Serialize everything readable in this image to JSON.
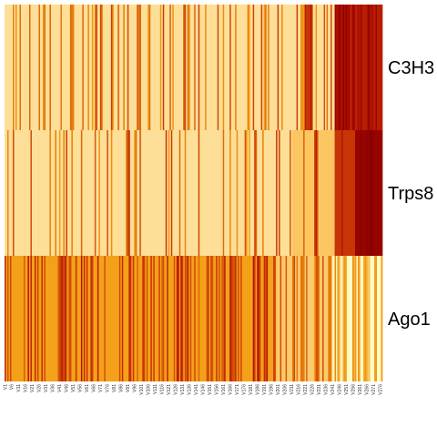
{
  "chart_data": {
    "type": "heatmap",
    "title": "",
    "xlabel": "",
    "ylabel": "",
    "legend": "none",
    "rows": [
      "C3H3",
      "Trps8",
      "Ago1"
    ],
    "columns": {
      "count": 277,
      "prefix": "V",
      "labeled_every": 5,
      "visible_labels": [
        "V1",
        "V6",
        "V11",
        "V16",
        "V21",
        "V26",
        "V31",
        "V36",
        "V41",
        "V46",
        "V51",
        "V56",
        "V61",
        "V66",
        "V71",
        "V76",
        "V81",
        "V86",
        "V91",
        "V96",
        "V101",
        "V106",
        "V111",
        "V116",
        "V121",
        "V126",
        "V131",
        "V136",
        "V141",
        "V146",
        "V151",
        "V156",
        "V161",
        "V166",
        "V171",
        "V176",
        "V181",
        "V186",
        "V191",
        "V196",
        "V201",
        "V206",
        "V211",
        "V216",
        "V221",
        "V226",
        "V231",
        "V236",
        "V241",
        "V246",
        "V251",
        "V256",
        "V261",
        "V266",
        "V271",
        "V276"
      ]
    },
    "value_scale": {
      "range": [
        0,
        1
      ],
      "colors": [
        "#ffffcc",
        "#fde3a0",
        "#fcc25a",
        "#f5a21b",
        "#e8820c",
        "#d45309",
        "#c42a04",
        "#a80a00",
        "#8b0000"
      ]
    },
    "row_profiles": [
      {
        "name": "C3H3",
        "base": 0.14,
        "spike_rate": 0.28,
        "spike_value": 0.4,
        "segments": [
          {
            "from": 221,
            "to": 226,
            "value": 0.72
          },
          {
            "from": 243,
            "to": 252,
            "value": 0.86
          },
          {
            "from": 253,
            "to": 277,
            "value": 0.8
          }
        ]
      },
      {
        "name": "Trps8",
        "base": 0.14,
        "spike_rate": 0.16,
        "spike_value": 0.42,
        "segments": [
          {
            "from": 212,
            "to": 242,
            "value": 0.24
          },
          {
            "from": 243,
            "to": 257,
            "value": 0.72
          },
          {
            "from": 258,
            "to": 277,
            "value": 0.95
          }
        ]
      },
      {
        "name": "Ago1",
        "base": 0.38,
        "spike_rate": 0.42,
        "spike_value": 0.32,
        "segments": [
          {
            "from": 200,
            "to": 239,
            "value": 0.22
          },
          {
            "from": 240,
            "to": 250,
            "value": 0.06
          },
          {
            "from": 251,
            "to": 277,
            "value": 0.02
          }
        ]
      }
    ]
  }
}
